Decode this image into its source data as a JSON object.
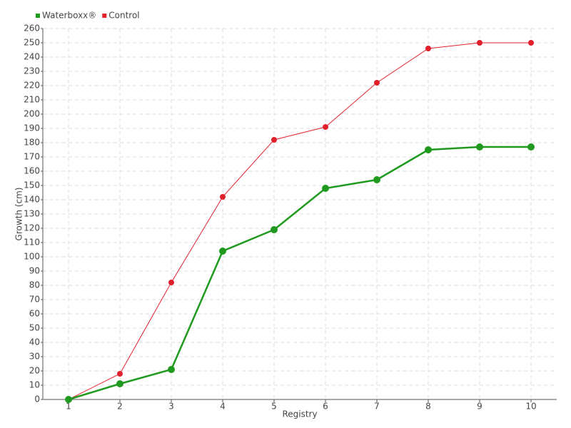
{
  "chart_data": {
    "type": "line",
    "x_label": "Registry",
    "y_label": "Growth (cm)",
    "categories": [
      "1",
      "2",
      "3",
      "4",
      "5",
      "6",
      "7",
      "8",
      "9",
      "10"
    ],
    "series": [
      {
        "name": "Waterboxx®",
        "color": "#1f9a1f",
        "values": [
          0,
          11,
          21,
          104,
          119,
          148,
          154,
          175,
          177,
          177
        ]
      },
      {
        "name": "Control",
        "color": "#e2202c",
        "values": [
          0,
          18,
          82,
          142,
          182,
          191,
          222,
          246,
          250,
          250
        ]
      }
    ],
    "ylim": [
      0,
      260
    ],
    "yticks": [
      0,
      10,
      20,
      30,
      40,
      50,
      60,
      70,
      80,
      90,
      100,
      110,
      120,
      130,
      140,
      150,
      160,
      170,
      180,
      190,
      200,
      210,
      220,
      230,
      240,
      250,
      260
    ],
    "grid": true,
    "legend": "top-left"
  }
}
